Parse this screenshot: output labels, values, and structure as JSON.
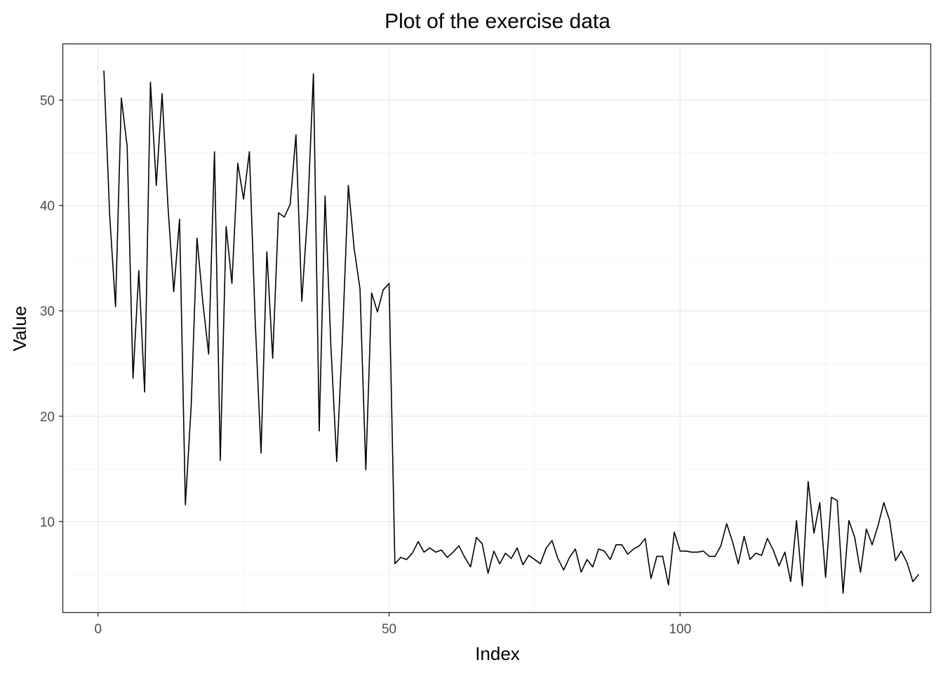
{
  "chart_data": {
    "type": "line",
    "title": "Plot of the exercise data",
    "xlabel": "Index",
    "ylabel": "Value",
    "xlim": [
      -6,
      143
    ],
    "ylim": [
      1.4,
      55.3
    ],
    "x_ticks": [
      0,
      50,
      100
    ],
    "y_ticks": [
      10,
      20,
      30,
      40,
      50
    ],
    "grid": true,
    "series": [
      {
        "color": "#000000",
        "values": [
          52.8,
          39.0,
          30.4,
          50.2,
          45.6,
          23.6,
          33.8,
          22.3,
          51.7,
          41.9,
          50.6,
          40.0,
          31.8,
          38.7,
          11.6,
          21.0,
          36.9,
          30.8,
          25.9,
          45.1,
          15.8,
          38.0,
          32.6,
          44.0,
          40.6,
          45.1,
          29.0,
          16.5,
          35.6,
          25.5,
          39.3,
          38.9,
          40.1,
          46.7,
          30.9,
          39.2,
          52.5,
          18.6,
          40.9,
          26.7,
          15.7,
          27.6,
          41.9,
          35.9,
          32.1,
          14.9,
          31.7,
          29.9,
          32.0,
          32.6,
          6.0,
          6.6,
          6.4,
          7.0,
          8.1,
          7.1,
          7.5,
          7.1,
          7.3,
          6.6,
          7.1,
          7.7,
          6.6,
          5.7,
          8.5,
          7.9,
          5.1,
          7.2,
          6.0,
          7.0,
          6.5,
          7.5,
          5.9,
          6.8,
          6.4,
          6.0,
          7.5,
          8.2,
          6.5,
          5.4,
          6.6,
          7.4,
          5.2,
          6.4,
          5.7,
          7.4,
          7.2,
          6.4,
          7.8,
          7.8,
          6.9,
          7.4,
          7.7,
          8.4,
          4.6,
          6.7,
          6.7,
          4.0,
          9.0,
          7.2,
          7.2,
          7.1,
          7.1,
          7.2,
          6.7,
          6.7,
          7.7,
          9.8,
          8.1,
          6.0,
          8.6,
          6.4,
          7.0,
          6.8,
          8.4,
          7.3,
          5.8,
          7.1,
          4.3,
          10.1,
          3.9,
          13.8,
          8.9,
          11.8,
          4.7,
          12.3,
          12.0,
          3.2,
          10.1,
          8.5,
          5.2,
          9.3,
          7.8,
          9.6,
          11.8,
          10.1,
          6.3,
          7.2,
          6.1,
          4.3,
          5.0
        ]
      }
    ]
  }
}
